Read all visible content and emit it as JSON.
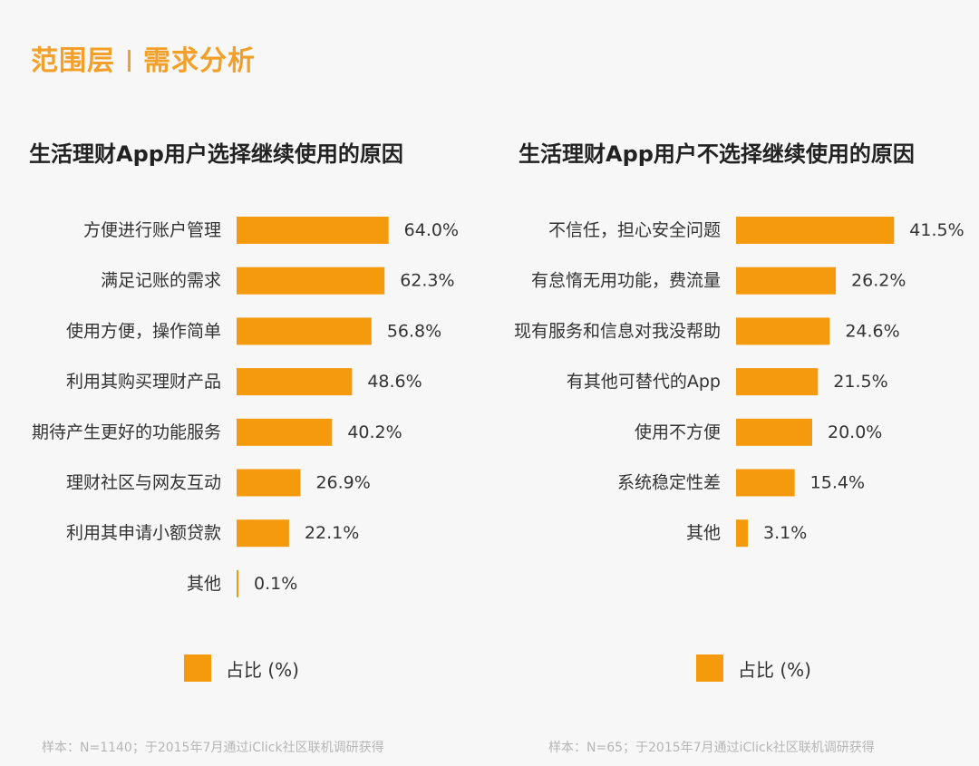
{
  "header": {
    "section": "范围层",
    "topic": "需求分析"
  },
  "bar_color": "#f59a0c",
  "chart_data": [
    {
      "type": "bar",
      "orientation": "horizontal",
      "title": "生活理财App用户选择继续使用的原因",
      "categories": [
        "方便进行账户管理",
        "满足记账的需求",
        "使用方便，操作简单",
        "利用其购买理财产品",
        "期待产生更好的功能服务",
        "理财社区与网友互动",
        "利用其申请小额贷款",
        "其他"
      ],
      "values": [
        64.0,
        62.3,
        56.8,
        48.6,
        40.2,
        26.9,
        22.1,
        0.1
      ],
      "value_labels": [
        "64.0%",
        "62.3%",
        "56.8%",
        "48.6%",
        "40.2%",
        "26.9%",
        "22.1%",
        "0.1%"
      ],
      "legend": "占比 (%)",
      "footnote": "样本：N=1140；于2015年7月通过iClick社区联机调研获得"
    },
    {
      "type": "bar",
      "orientation": "horizontal",
      "title": "生活理财App用户不选择继续使用的原因",
      "categories": [
        "不信任，担心安全问题",
        "有怠惰无用功能，费流量",
        "现有服务和信息对我没帮助",
        "有其他可替代的App",
        "使用不方便",
        "系统稳定性差",
        "其他"
      ],
      "values": [
        41.5,
        26.2,
        24.6,
        21.5,
        20.0,
        15.4,
        3.1
      ],
      "value_labels": [
        "41.5%",
        "26.2%",
        "24.6%",
        "21.5%",
        "20.0%",
        "15.4%",
        "3.1%"
      ],
      "legend": "占比 (%)",
      "footnote": "样本：N=65；于2015年7月通过iClick社区联机调研获得"
    }
  ]
}
